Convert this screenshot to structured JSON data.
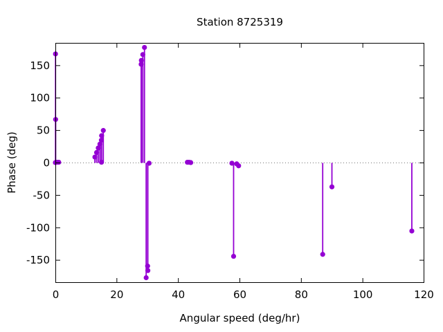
{
  "chart_data": {
    "type": "scatter",
    "style": "stem-impulses-with-points",
    "title": "Station 8725319",
    "xlabel": "Angular speed (deg/hr)",
    "ylabel": "Phase (deg)",
    "xlim": [
      0,
      120
    ],
    "ylim": [
      -185,
      185
    ],
    "xticks": [
      0,
      20,
      40,
      60,
      80,
      100,
      120
    ],
    "yticks": [
      -150,
      -100,
      -50,
      0,
      50,
      100,
      150
    ],
    "zero_line": true,
    "grid": false,
    "legend": "none",
    "point_color": "#9400d3",
    "axis_color": "#000000",
    "points": [
      [
        0.0,
        0.5
      ],
      [
        0.04,
        168
      ],
      [
        0.08,
        67
      ],
      [
        0.54,
        1
      ],
      [
        1.1,
        1
      ],
      [
        12.85,
        9
      ],
      [
        13.4,
        16
      ],
      [
        13.94,
        23
      ],
      [
        14.49,
        29
      ],
      [
        14.96,
        35
      ],
      [
        15.0,
        1
      ],
      [
        15.04,
        42
      ],
      [
        15.59,
        50
      ],
      [
        27.9,
        152
      ],
      [
        27.97,
        158
      ],
      [
        28.44,
        167
      ],
      [
        28.98,
        178
      ],
      [
        29.53,
        -177
      ],
      [
        30.0,
        -159
      ],
      [
        30.08,
        -166
      ],
      [
        30.5,
        -0.5
      ],
      [
        42.93,
        1
      ],
      [
        43.48,
        1
      ],
      [
        44.03,
        0.5
      ],
      [
        57.42,
        -0.5
      ],
      [
        57.97,
        -144
      ],
      [
        58.98,
        -1.5
      ],
      [
        59.6,
        -4.5
      ],
      [
        86.95,
        -141
      ],
      [
        89.95,
        -37
      ],
      [
        115.94,
        -105
      ]
    ]
  }
}
